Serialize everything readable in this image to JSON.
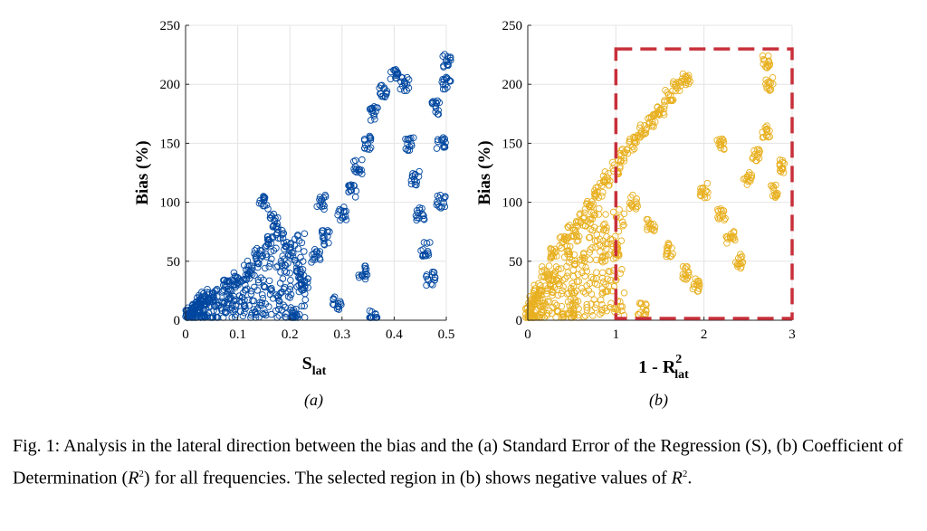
{
  "chart_data": [
    {
      "type": "scatter",
      "panel": "(a)",
      "xlabel_main": "S",
      "xlabel_sub": "lat",
      "ylabel": "Bias (%)",
      "xlim": [
        0,
        0.5
      ],
      "ylim": [
        0,
        250
      ],
      "xticks": [
        0,
        0.1,
        0.2,
        0.3,
        0.4,
        0.5
      ],
      "xtick_labels": [
        "0",
        "0.1",
        "0.2",
        "0.3",
        "0.4",
        "0.5"
      ],
      "yticks": [
        0,
        50,
        100,
        150,
        200,
        250
      ],
      "ytick_labels": [
        "0",
        "50",
        "100",
        "150",
        "200",
        "250"
      ],
      "grid": true,
      "marker": "open-circle",
      "color": "#0047a0",
      "approx_points": [
        [
          0.01,
          5
        ],
        [
          0.02,
          10
        ],
        [
          0.03,
          18
        ],
        [
          0.05,
          22
        ],
        [
          0.08,
          28
        ],
        [
          0.1,
          35
        ],
        [
          0.12,
          45
        ],
        [
          0.14,
          55
        ],
        [
          0.16,
          65
        ],
        [
          0.18,
          75
        ],
        [
          0.17,
          85
        ],
        [
          0.15,
          99
        ],
        [
          0.2,
          60
        ],
        [
          0.22,
          40
        ],
        [
          0.23,
          30
        ],
        [
          0.25,
          55
        ],
        [
          0.27,
          70
        ],
        [
          0.3,
          90
        ],
        [
          0.26,
          100
        ],
        [
          0.32,
          110
        ],
        [
          0.33,
          130
        ],
        [
          0.35,
          150
        ],
        [
          0.36,
          175
        ],
        [
          0.38,
          195
        ],
        [
          0.4,
          208
        ],
        [
          0.42,
          200
        ],
        [
          0.43,
          150
        ],
        [
          0.44,
          120
        ],
        [
          0.45,
          90
        ],
        [
          0.46,
          60
        ],
        [
          0.47,
          35
        ],
        [
          0.36,
          2
        ],
        [
          0.49,
          100
        ],
        [
          0.49,
          150
        ],
        [
          0.5,
          200
        ],
        [
          0.5,
          220
        ],
        [
          0.48,
          180
        ],
        [
          0.34,
          40
        ],
        [
          0.29,
          15
        ],
        [
          0.21,
          5
        ]
      ]
    },
    {
      "type": "scatter",
      "panel": "(b)",
      "xlabel_main": "1 - R",
      "xlabel_sup": "2",
      "xlabel_sub": "lat",
      "ylabel": "Bias (%)",
      "xlim": [
        0,
        3
      ],
      "ylim": [
        0,
        250
      ],
      "xticks": [
        0,
        1,
        2,
        3
      ],
      "xtick_labels": [
        "0",
        "1",
        "2",
        "3"
      ],
      "yticks": [
        0,
        50,
        100,
        150,
        200,
        250
      ],
      "ytick_labels": [
        "0",
        "50",
        "100",
        "150",
        "200",
        "250"
      ],
      "grid": true,
      "marker": "open-circle",
      "color": "#e8b020",
      "highlight_region": {
        "x": [
          1,
          3
        ],
        "y": [
          0,
          230
        ],
        "color": "#c8303a",
        "note": "negative values of R^2"
      },
      "approx_points": [
        [
          0.02,
          5
        ],
        [
          0.05,
          15
        ],
        [
          0.1,
          25
        ],
        [
          0.2,
          40
        ],
        [
          0.3,
          55
        ],
        [
          0.4,
          65
        ],
        [
          0.5,
          75
        ],
        [
          0.6,
          85
        ],
        [
          0.7,
          95
        ],
        [
          0.8,
          110
        ],
        [
          0.9,
          120
        ],
        [
          1.0,
          130
        ],
        [
          1.1,
          140
        ],
        [
          1.2,
          150
        ],
        [
          1.3,
          160
        ],
        [
          1.4,
          170
        ],
        [
          1.5,
          180
        ],
        [
          1.6,
          190
        ],
        [
          1.7,
          198
        ],
        [
          1.8,
          205
        ],
        [
          1.2,
          100
        ],
        [
          1.4,
          80
        ],
        [
          1.6,
          60
        ],
        [
          1.8,
          40
        ],
        [
          1.3,
          10
        ],
        [
          2.0,
          110
        ],
        [
          2.2,
          90
        ],
        [
          2.3,
          70
        ],
        [
          2.4,
          50
        ],
        [
          2.5,
          120
        ],
        [
          2.6,
          140
        ],
        [
          2.7,
          160
        ],
        [
          2.75,
          200
        ],
        [
          2.7,
          220
        ],
        [
          2.8,
          110
        ],
        [
          2.9,
          130
        ],
        [
          2.2,
          150
        ],
        [
          1.9,
          30
        ],
        [
          0.5,
          10
        ],
        [
          1.0,
          60
        ]
      ]
    }
  ],
  "panels": {
    "a": "(a)",
    "b": "(b)"
  },
  "caption": {
    "fig_label": "Fig.  1:",
    "text_1": " Analysis in the lateral direction between the bias and the (a)  Standard Error of the Regression (S), (b) Coefficient of Determination (",
    "r_symbol": "R",
    "r_sup": "2",
    "text_2": ") for all frequencies. The selected region in (b) shows negative values of ",
    "r_symbol_2": "R",
    "r_sup_2": "2",
    "text_3": "."
  }
}
